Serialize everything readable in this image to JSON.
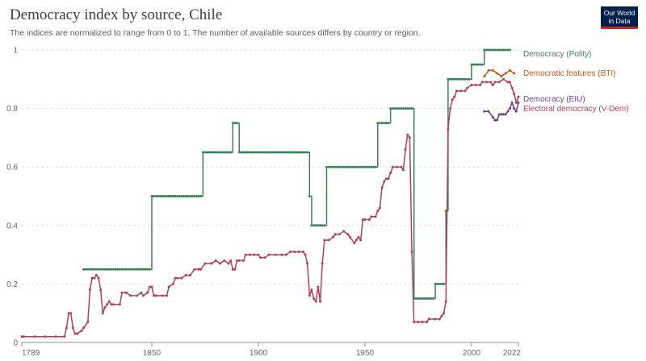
{
  "chart_data": {
    "type": "line",
    "title": "Democracy index by source, Chile",
    "subtitle": "The indices are normalized to range from 0 to 1. The number of available sources differs by country or region.",
    "logo": {
      "line1": "Our World",
      "line2": "in Data"
    },
    "xlabel": "",
    "ylabel": "",
    "xlim": [
      1789,
      2022
    ],
    "ylim": [
      0,
      1
    ],
    "x_ticks": [
      1789,
      1850,
      1900,
      1950,
      2000,
      2022
    ],
    "y_ticks": [
      0,
      0.2,
      0.4,
      0.6,
      0.8,
      1
    ],
    "y_tick_labels": [
      "0",
      "0.2",
      "0.4",
      "0.6",
      "0.8",
      "1"
    ],
    "grid": "horizontal-dashed",
    "legend": "right-end-labels",
    "series": [
      {
        "name": "Democracy (Polity)",
        "color": "#3a8059",
        "step": true,
        "points": [
          [
            1818,
            0.25
          ],
          [
            1849,
            0.25
          ],
          [
            1850,
            0.5
          ],
          [
            1873,
            0.5
          ],
          [
            1874,
            0.65
          ],
          [
            1887,
            0.65
          ],
          [
            1888,
            0.75
          ],
          [
            1890,
            0.75
          ],
          [
            1891,
            0.65
          ],
          [
            1923,
            0.65
          ],
          [
            1924,
            0.5
          ],
          [
            1925,
            0.4
          ],
          [
            1931,
            0.4
          ],
          [
            1932,
            0.6
          ],
          [
            1955,
            0.6
          ],
          [
            1956,
            0.75
          ],
          [
            1961,
            0.75
          ],
          [
            1962,
            0.8
          ],
          [
            1972,
            0.8
          ],
          [
            1973,
            0.15
          ],
          [
            1982,
            0.15
          ],
          [
            1983,
            0.2
          ],
          [
            1987,
            0.2
          ],
          [
            1988,
            0.45
          ],
          [
            1989,
            0.9
          ],
          [
            1999,
            0.9
          ],
          [
            2000,
            0.95
          ],
          [
            2005,
            0.95
          ],
          [
            2006,
            1
          ],
          [
            2018,
            1
          ]
        ]
      },
      {
        "name": "Democratic features (BTI)",
        "color": "#c05917",
        "step": false,
        "points": [
          [
            2006,
            0.91
          ],
          [
            2008,
            0.93
          ],
          [
            2010,
            0.93
          ],
          [
            2012,
            0.92
          ],
          [
            2014,
            0.91
          ],
          [
            2016,
            0.92
          ],
          [
            2018,
            0.93
          ],
          [
            2020,
            0.92
          ]
        ]
      },
      {
        "name": "Democracy (EIU)",
        "color": "#6d3e91",
        "step": false,
        "points": [
          [
            2006,
            0.79
          ],
          [
            2008,
            0.79
          ],
          [
            2010,
            0.77
          ],
          [
            2011,
            0.76
          ],
          [
            2012,
            0.76
          ],
          [
            2013,
            0.78
          ],
          [
            2014,
            0.78
          ],
          [
            2015,
            0.78
          ],
          [
            2016,
            0.78
          ],
          [
            2017,
            0.79
          ],
          [
            2018,
            0.8
          ],
          [
            2019,
            0.82
          ],
          [
            2020,
            0.8
          ],
          [
            2021,
            0.79
          ],
          [
            2022,
            0.82
          ]
        ]
      },
      {
        "name": "Electoral democracy (V-Dem)",
        "color": "#b13e5a",
        "step": false,
        "points": [
          [
            1789,
            0.02
          ],
          [
            1790,
            0.02
          ],
          [
            1795,
            0.02
          ],
          [
            1800,
            0.02
          ],
          [
            1805,
            0.02
          ],
          [
            1809,
            0.02
          ],
          [
            1810,
            0.05
          ],
          [
            1811,
            0.1
          ],
          [
            1812,
            0.1
          ],
          [
            1813,
            0.05
          ],
          [
            1814,
            0.03
          ],
          [
            1815,
            0.03
          ],
          [
            1817,
            0.04
          ],
          [
            1818,
            0.05
          ],
          [
            1820,
            0.07
          ],
          [
            1821,
            0.18
          ],
          [
            1822,
            0.22
          ],
          [
            1823,
            0.22
          ],
          [
            1824,
            0.23
          ],
          [
            1825,
            0.22
          ],
          [
            1826,
            0.18
          ],
          [
            1827,
            0.1
          ],
          [
            1828,
            0.12
          ],
          [
            1829,
            0.13
          ],
          [
            1830,
            0.14
          ],
          [
            1831,
            0.13
          ],
          [
            1832,
            0.13
          ],
          [
            1835,
            0.13
          ],
          [
            1836,
            0.17
          ],
          [
            1838,
            0.17
          ],
          [
            1840,
            0.16
          ],
          [
            1843,
            0.16
          ],
          [
            1845,
            0.17
          ],
          [
            1846,
            0.16
          ],
          [
            1848,
            0.17
          ],
          [
            1849,
            0.19
          ],
          [
            1850,
            0.19
          ],
          [
            1851,
            0.16
          ],
          [
            1852,
            0.16
          ],
          [
            1855,
            0.16
          ],
          [
            1857,
            0.16
          ],
          [
            1858,
            0.19
          ],
          [
            1860,
            0.2
          ],
          [
            1861,
            0.22
          ],
          [
            1862,
            0.22
          ],
          [
            1864,
            0.22
          ],
          [
            1866,
            0.23
          ],
          [
            1868,
            0.23
          ],
          [
            1870,
            0.25
          ],
          [
            1872,
            0.25
          ],
          [
            1873,
            0.25
          ],
          [
            1875,
            0.27
          ],
          [
            1878,
            0.27
          ],
          [
            1880,
            0.28
          ],
          [
            1882,
            0.27
          ],
          [
            1884,
            0.28
          ],
          [
            1886,
            0.27
          ],
          [
            1887,
            0.28
          ],
          [
            1888,
            0.25
          ],
          [
            1889,
            0.25
          ],
          [
            1890,
            0.28
          ],
          [
            1891,
            0.28
          ],
          [
            1893,
            0.28
          ],
          [
            1894,
            0.3
          ],
          [
            1896,
            0.3
          ],
          [
            1898,
            0.3
          ],
          [
            1900,
            0.3
          ],
          [
            1901,
            0.29
          ],
          [
            1903,
            0.29
          ],
          [
            1905,
            0.3
          ],
          [
            1908,
            0.3
          ],
          [
            1911,
            0.3
          ],
          [
            1913,
            0.3
          ],
          [
            1915,
            0.31
          ],
          [
            1917,
            0.31
          ],
          [
            1919,
            0.31
          ],
          [
            1921,
            0.31
          ],
          [
            1922,
            0.3
          ],
          [
            1923,
            0.27
          ],
          [
            1924,
            0.16
          ],
          [
            1925,
            0.18
          ],
          [
            1926,
            0.15
          ],
          [
            1927,
            0.14
          ],
          [
            1928,
            0.19
          ],
          [
            1929,
            0.14
          ],
          [
            1930,
            0.27
          ],
          [
            1931,
            0.35
          ],
          [
            1933,
            0.35
          ],
          [
            1935,
            0.36
          ],
          [
            1936,
            0.37
          ],
          [
            1938,
            0.37
          ],
          [
            1940,
            0.38
          ],
          [
            1942,
            0.37
          ],
          [
            1943,
            0.36
          ],
          [
            1945,
            0.34
          ],
          [
            1946,
            0.35
          ],
          [
            1947,
            0.36
          ],
          [
            1948,
            0.35
          ],
          [
            1949,
            0.42
          ],
          [
            1950,
            0.42
          ],
          [
            1952,
            0.42
          ],
          [
            1953,
            0.43
          ],
          [
            1955,
            0.43
          ],
          [
            1956,
            0.45
          ],
          [
            1957,
            0.46
          ],
          [
            1958,
            0.53
          ],
          [
            1959,
            0.55
          ],
          [
            1960,
            0.56
          ],
          [
            1961,
            0.56
          ],
          [
            1962,
            0.58
          ],
          [
            1963,
            0.6
          ],
          [
            1965,
            0.6
          ],
          [
            1967,
            0.6
          ],
          [
            1968,
            0.59
          ],
          [
            1969,
            0.66
          ],
          [
            1970,
            0.71
          ],
          [
            1971,
            0.7
          ],
          [
            1972,
            0.31
          ],
          [
            1973,
            0.07
          ],
          [
            1975,
            0.07
          ],
          [
            1977,
            0.07
          ],
          [
            1979,
            0.07
          ],
          [
            1980,
            0.08
          ],
          [
            1983,
            0.08
          ],
          [
            1985,
            0.08
          ],
          [
            1986,
            0.09
          ],
          [
            1987,
            0.1
          ],
          [
            1988,
            0.14
          ],
          [
            1989,
            0.73
          ],
          [
            1990,
            0.8
          ],
          [
            1991,
            0.83
          ],
          [
            1992,
            0.84
          ],
          [
            1993,
            0.86
          ],
          [
            1995,
            0.86
          ],
          [
            1997,
            0.86
          ],
          [
            1998,
            0.87
          ],
          [
            2000,
            0.88
          ],
          [
            2002,
            0.88
          ],
          [
            2004,
            0.88
          ],
          [
            2005,
            0.89
          ],
          [
            2007,
            0.89
          ],
          [
            2009,
            0.89
          ],
          [
            2010,
            0.88
          ],
          [
            2011,
            0.89
          ],
          [
            2013,
            0.89
          ],
          [
            2015,
            0.9
          ],
          [
            2017,
            0.89
          ],
          [
            2018,
            0.89
          ],
          [
            2019,
            0.87
          ],
          [
            2020,
            0.85
          ],
          [
            2021,
            0.82
          ],
          [
            2022,
            0.84
          ]
        ]
      }
    ]
  }
}
